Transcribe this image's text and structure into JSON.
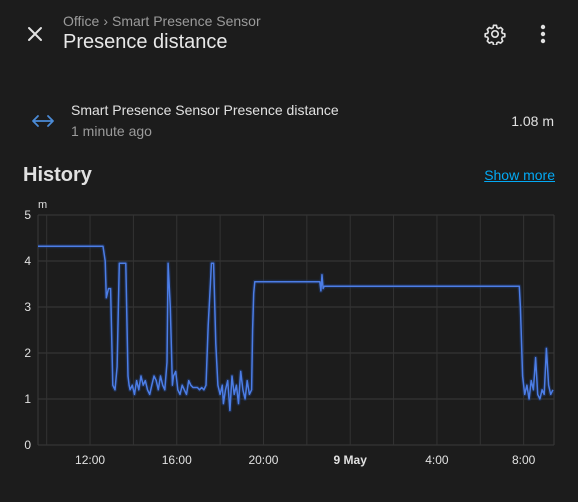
{
  "header": {
    "breadcrumb": [
      "Office",
      "Smart Presence Sensor"
    ],
    "breadcrumb_separator": "›",
    "title": "Presence distance",
    "icons": {
      "close": "close-icon",
      "settings": "cog-icon",
      "menu": "dots-vertical-icon"
    }
  },
  "entity": {
    "name": "Smart Presence Sensor Presence distance",
    "last_changed": "1 minute ago",
    "state": "1.08 m",
    "icon": "arrow-left-right-icon"
  },
  "history": {
    "heading": "History",
    "show_more_label": "Show more"
  },
  "colors": {
    "background": "#1c1c1c",
    "accent_link": "#03a9f4",
    "series_line": "#4c7de6",
    "icon_blue": "#4b8bd6"
  },
  "chart_data": {
    "type": "line",
    "ylabel": "m",
    "ylim": [
      0,
      5
    ],
    "yticks": [
      "0",
      "1",
      "2",
      "3",
      "4",
      "5"
    ],
    "xticks": [
      "12:00",
      "16:00",
      "20:00",
      "9 May",
      "4:00",
      "8:00"
    ],
    "x_range_hours": [
      9.6,
      33.4
    ],
    "grid": true,
    "series": [
      {
        "x": [
          9.6,
          12.6,
          12.7,
          12.75,
          12.85,
          12.95,
          13.05,
          13.15,
          13.25,
          13.35,
          13.45,
          13.55,
          13.65,
          13.75,
          13.8,
          13.85,
          13.95,
          14.05,
          14.15,
          14.25,
          14.35,
          14.45,
          14.55,
          14.65,
          14.75,
          14.85,
          14.95,
          15.05,
          15.15,
          15.25,
          15.35,
          15.45,
          15.55,
          15.6,
          15.7,
          15.8,
          15.85,
          15.95,
          16.05,
          16.15,
          16.25,
          16.35,
          16.45,
          16.55,
          16.65,
          16.75,
          16.85,
          16.95,
          17.05,
          17.15,
          17.25,
          17.35,
          17.45,
          17.55,
          17.6,
          17.65,
          17.7,
          17.8,
          17.9,
          18.0,
          18.1,
          18.15,
          18.25,
          18.35,
          18.45,
          18.55,
          18.65,
          18.75,
          18.85,
          18.95,
          19.05,
          19.15,
          19.25,
          19.35,
          19.45,
          19.5,
          19.55,
          19.6,
          22.6,
          22.65,
          22.7,
          22.75,
          22.8,
          22.85,
          22.9,
          31.8,
          31.85,
          31.95,
          32.05,
          32.15,
          32.25,
          32.35,
          32.45,
          32.55,
          32.65,
          32.75,
          32.85,
          32.95,
          33.05,
          33.15,
          33.25,
          33.35
        ],
        "y": [
          4.32,
          4.32,
          4.0,
          3.2,
          3.4,
          3.4,
          1.3,
          1.2,
          1.7,
          3.95,
          3.95,
          3.95,
          3.95,
          1.5,
          1.3,
          1.2,
          1.3,
          1.1,
          1.4,
          1.2,
          1.5,
          1.3,
          1.4,
          1.2,
          1.1,
          1.3,
          1.5,
          1.4,
          1.2,
          1.5,
          1.3,
          1.2,
          1.8,
          3.95,
          3.0,
          1.3,
          1.5,
          1.6,
          1.2,
          1.1,
          1.3,
          1.2,
          1.1,
          1.4,
          1.3,
          1.25,
          1.25,
          1.25,
          1.2,
          1.25,
          1.2,
          1.3,
          2.6,
          3.5,
          3.95,
          3.95,
          3.95,
          2.2,
          1.3,
          1.1,
          1.3,
          0.9,
          1.2,
          1.4,
          0.75,
          1.5,
          1.1,
          1.3,
          0.9,
          1.6,
          1.2,
          1.0,
          1.4,
          1.1,
          1.2,
          2.5,
          3.3,
          3.55,
          3.55,
          3.35,
          3.7,
          3.4,
          3.45,
          3.45,
          3.45,
          3.45,
          3.0,
          1.5,
          1.1,
          1.3,
          1.0,
          1.4,
          1.2,
          1.9,
          1.1,
          1.0,
          1.2,
          1.1,
          2.1,
          1.3,
          1.1,
          1.2
        ]
      }
    ]
  }
}
